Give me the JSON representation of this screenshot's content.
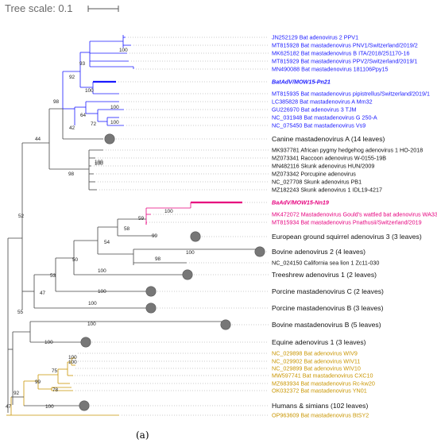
{
  "tree_scale": {
    "label": "Tree scale: 0.1"
  },
  "caption": "(a)",
  "colors": {
    "blue": "#1a1aff",
    "magenta": "#e6007e",
    "gold": "#c99500",
    "black": "#111111",
    "grey_node": "#777777",
    "branch": "#444444",
    "dots": "#bbbbbb"
  },
  "leaves": [
    {
      "label": "JN252129 Bat adenovirus 2 PPV1",
      "color": "blue"
    },
    {
      "label": "MT815928 Bat mastadenovirus PNV1/Switzerland/2019/2",
      "color": "blue"
    },
    {
      "label": "MK625182 Bat mastadenovirus B ITA/2018/251170-16",
      "color": "blue"
    },
    {
      "label": "MT815929 Bat mastadenovirus PPV2/Switzerland/2019/1",
      "color": "blue"
    },
    {
      "label": "MN490088 Bat mastadenovirus 181106Ppy15",
      "color": "blue"
    },
    {
      "label": "BatAdV/MOW15-Pn21",
      "color": "blue",
      "style": "bold-italic"
    },
    {
      "label": "MT815935 Bat mastadenovirus pipistrellus/Switzerland/2019/1",
      "color": "blue"
    },
    {
      "label": "LC385828 Bat mastadenovirus A Mm32",
      "color": "blue"
    },
    {
      "label": "GU226970 Bat adenovirus 3 TJM",
      "color": "blue"
    },
    {
      "label": "NC_031948 Bat mastadenovirus G 250-A",
      "color": "blue"
    },
    {
      "label": "NC_075450 Bat mastadenovirus Vs9",
      "color": "blue"
    },
    {
      "label": "Canine mastadenovirus A (14 leaves)",
      "color": "black",
      "big": true
    },
    {
      "label": "MK937781 African pygmy hedgehog adenovirus 1 HO-2018",
      "color": "black"
    },
    {
      "label": "MZ073341 Raccoon adenovirus W-0155-19B",
      "color": "black"
    },
    {
      "label": "MN482116 Skunk adenovirus HUN/2009",
      "color": "black"
    },
    {
      "label": "MZ073342 Porcupine adenovirus",
      "color": "black"
    },
    {
      "label": "NC_027708 Skunk adenovirus PB1",
      "color": "black"
    },
    {
      "label": "MZ182243 Skunk adenovirus 1 IDL19-4217",
      "color": "black"
    },
    {
      "label": "BaAdV/MOW15-Nn19",
      "color": "magenta",
      "style": "bold-italic"
    },
    {
      "label": "MK472072 Mastadenovirus Gould's wattled bat adenovirus WA3301",
      "color": "magenta"
    },
    {
      "label": "MT815934 Bat mastadenovirus Pnathusii/Switzerland/2019",
      "color": "magenta"
    },
    {
      "label": "European ground squirrel adenovirus 3 (3 leaves)",
      "color": "black",
      "big": true
    },
    {
      "label": "Bovine adenovirus 2 (4 leaves)",
      "color": "black",
      "big": true
    },
    {
      "label": "NC_024150 California sea lion 1 Zc11-030",
      "color": "black"
    },
    {
      "label": "Treeshrew adenovirus 1 (2 leaves)",
      "color": "black",
      "big": true
    },
    {
      "label": "Porcine mastadenovirus C (2 leaves)",
      "color": "black",
      "big": true
    },
    {
      "label": "Porcine mastadenovirus B (3 leaves)",
      "color": "black",
      "big": true
    },
    {
      "label": "Bovine mastadenovirus B (5 leaves)",
      "color": "black",
      "big": true
    },
    {
      "label": "Equine adenovirus 1 (3 leaves)",
      "color": "black",
      "big": true
    },
    {
      "label": "NC_029898 Bat adenovirus WIV9",
      "color": "gold"
    },
    {
      "label": "NC_029902 Bat adenovirus WIV11",
      "color": "gold"
    },
    {
      "label": "NC_029899 Bat adenovirus WIV10",
      "color": "gold"
    },
    {
      "label": "MW597741 Bat mastadenovirus CXC10",
      "color": "gold"
    },
    {
      "label": "MZ683934 Bat mastadenovirus Rc-kw20",
      "color": "gold"
    },
    {
      "label": "OK032372 Bat mastadenovirus YN01",
      "color": "gold"
    },
    {
      "label": "Humans & simians (102 leaves)",
      "color": "black",
      "big": true
    },
    {
      "label": "OP963609 Bat mastadenovirus BtSY2",
      "color": "gold"
    }
  ],
  "bootstrap": [
    "100",
    "93",
    "92",
    "100",
    "98",
    "100",
    "64",
    "100",
    "42",
    "72",
    "44",
    "100",
    "98",
    "100",
    "100",
    "59",
    "58",
    "99",
    "54",
    "100",
    "98",
    "50",
    "100",
    "53",
    "100",
    "47",
    "100",
    "52",
    "100",
    "55",
    "100",
    "100",
    "75",
    "100",
    "99",
    "78",
    "92",
    "100",
    "47"
  ]
}
